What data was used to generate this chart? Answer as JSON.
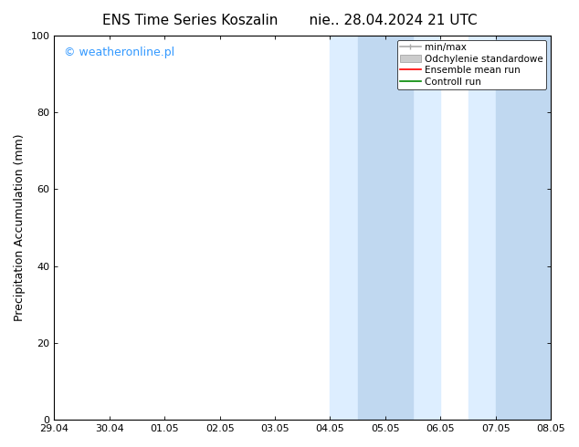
{
  "title_left": "ENS Time Series Koszalin",
  "title_right": "nie.. 28.04.2024 21 UTC",
  "ylabel": "Precipitation Accumulation (mm)",
  "ylim": [
    0,
    100
  ],
  "yticks": [
    0,
    20,
    40,
    60,
    80,
    100
  ],
  "xtick_labels": [
    "29.04",
    "30.04",
    "01.05",
    "02.05",
    "03.05",
    "04.05",
    "05.05",
    "06.05",
    "07.05",
    "08.05"
  ],
  "xtick_positions": [
    0,
    1,
    2,
    3,
    4,
    5,
    6,
    7,
    8,
    9
  ],
  "xlim": [
    0,
    9
  ],
  "shaded_outer_1": {
    "x_start": 5.0,
    "x_end": 7.0,
    "color": "#ddeeff"
  },
  "shaded_inner_1": {
    "x_start": 5.5,
    "x_end": 6.5,
    "color": "#c0d8f0"
  },
  "shaded_outer_2": {
    "x_start": 7.5,
    "x_end": 9.0,
    "color": "#ddeeff"
  },
  "shaded_inner_2": {
    "x_start": 8.0,
    "x_end": 9.0,
    "color": "#c0d8f0"
  },
  "watermark_text": "© weatheronline.pl",
  "watermark_color": "#3399ff",
  "watermark_fontsize": 9,
  "legend_items": [
    {
      "label": "min/max",
      "color": "#aaaaaa",
      "type": "minmax"
    },
    {
      "label": "Odchylenie standardowe",
      "color": "#cccccc",
      "type": "fill"
    },
    {
      "label": "Ensemble mean run",
      "color": "#ff0000",
      "type": "line"
    },
    {
      "label": "Controll run",
      "color": "#008800",
      "type": "line"
    }
  ],
  "background_color": "#ffffff",
  "title_fontsize": 11,
  "ylabel_fontsize": 9,
  "tick_fontsize": 8,
  "legend_fontsize": 7.5
}
